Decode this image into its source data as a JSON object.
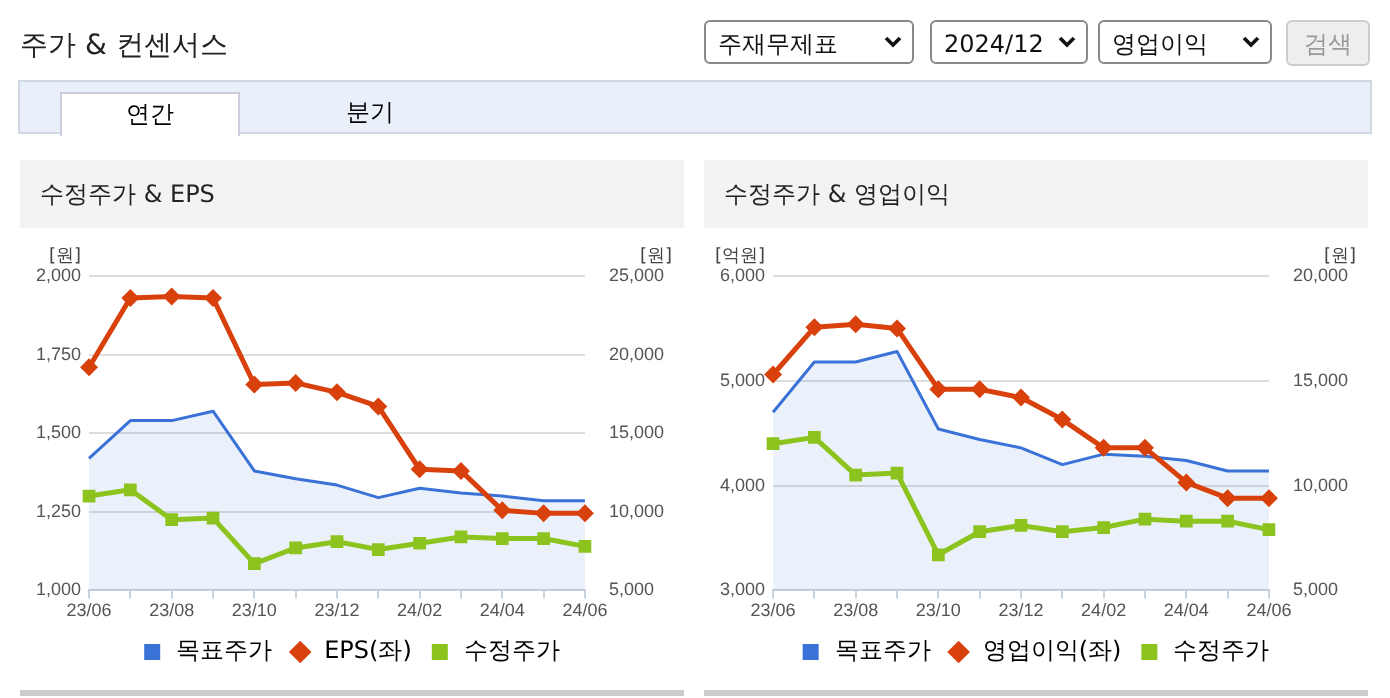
{
  "chart_data": [
    {
      "type": "other",
      "title": "주가 & 컨센서스",
      "annotations": [
        "주재무제표",
        "2024/12",
        "영업이익",
        "검색",
        "연간",
        "분기"
      ]
    },
    {
      "type": "line",
      "title": "수정주가 & EPS",
      "ylabel": "[원]",
      "y2label": "[원]",
      "categories": [
        "23/06",
        null,
        "23/08",
        null,
        "23/10",
        null,
        "23/12",
        null,
        "24/02",
        null,
        "24/04",
        null,
        "24/06"
      ],
      "ylim": [
        1000,
        2000
      ],
      "yticks": [
        {
          "value": 1000,
          "label": "1,000"
        },
        {
          "value": 1250,
          "label": "1,250"
        },
        {
          "value": 1500,
          "label": "1,500"
        },
        {
          "value": 1750,
          "label": "1,750"
        },
        {
          "value": 2000,
          "label": "2,000"
        }
      ],
      "y2lim": [
        5000,
        25000
      ],
      "y2ticks": [
        {
          "value": 5000,
          "label": "5,000"
        },
        {
          "value": 10000,
          "label": "10,000"
        },
        {
          "value": 15000,
          "label": "15,000"
        },
        {
          "value": 20000,
          "label": "20,000"
        },
        {
          "value": 25000,
          "label": "25,000"
        }
      ],
      "grid": "y",
      "legend": "bottom",
      "series": [
        {
          "name": "목표주가",
          "type": "area",
          "axis": "y2",
          "marker": "none",
          "color": "#3a72d8",
          "values": [
            13400,
            15800,
            15800,
            16400,
            12600,
            12100,
            11700,
            10900,
            11500,
            11200,
            11000,
            10700,
            10700
          ]
        },
        {
          "name": "EPS(좌)",
          "type": "line",
          "axis": "y",
          "marker": "diamond",
          "color": "#d8400c",
          "values": [
            1710,
            1930,
            1935,
            1930,
            1655,
            1660,
            1630,
            1585,
            1385,
            1380,
            1255,
            1245,
            1245
          ]
        },
        {
          "name": "수정주가",
          "type": "line",
          "axis": "y2",
          "marker": "square",
          "color": "#8cc31e",
          "values": [
            11000,
            11400,
            9500,
            9600,
            6700,
            7700,
            8100,
            7600,
            8000,
            8400,
            8300,
            8300,
            7800
          ]
        }
      ]
    },
    {
      "type": "line",
      "title": "수정주가 & 영업이익",
      "ylabel": "[억원]",
      "y2label": "[원]",
      "categories": [
        "23/06",
        null,
        "23/08",
        null,
        "23/10",
        null,
        "23/12",
        null,
        "24/02",
        null,
        "24/04",
        null,
        "24/06"
      ],
      "ylim": [
        3000,
        6000
      ],
      "yticks": [
        {
          "value": 3000,
          "label": "3,000"
        },
        {
          "value": 4000,
          "label": "4,000"
        },
        {
          "value": 5000,
          "label": "5,000"
        },
        {
          "value": 6000,
          "label": "6,000"
        }
      ],
      "y2lim": [
        5000,
        20000
      ],
      "y2ticks": [
        {
          "value": 5000,
          "label": "5,000"
        },
        {
          "value": 10000,
          "label": "10,000"
        },
        {
          "value": 15000,
          "label": "15,000"
        },
        {
          "value": 20000,
          "label": "20,000"
        }
      ],
      "grid": "y",
      "legend": "bottom",
      "series": [
        {
          "name": "목표주가",
          "type": "area",
          "axis": "y2",
          "marker": "none",
          "color": "#3a72d8",
          "values": [
            13500,
            15900,
            15900,
            16400,
            12700,
            12200,
            11800,
            11000,
            11500,
            11400,
            11200,
            10700,
            10700
          ]
        },
        {
          "name": "영업이익(좌)",
          "type": "line",
          "axis": "y",
          "marker": "diamond",
          "color": "#d8400c",
          "values": [
            5060,
            5510,
            5540,
            5500,
            4920,
            4920,
            4840,
            4630,
            4360,
            4360,
            4030,
            3880,
            3880
          ]
        },
        {
          "name": "수정주가",
          "type": "line",
          "axis": "y2",
          "marker": "square",
          "color": "#8cc31e",
          "values": [
            12000,
            12300,
            10500,
            10600,
            6700,
            7800,
            8100,
            7800,
            8000,
            8400,
            8300,
            8300,
            7900
          ]
        }
      ]
    }
  ]
}
